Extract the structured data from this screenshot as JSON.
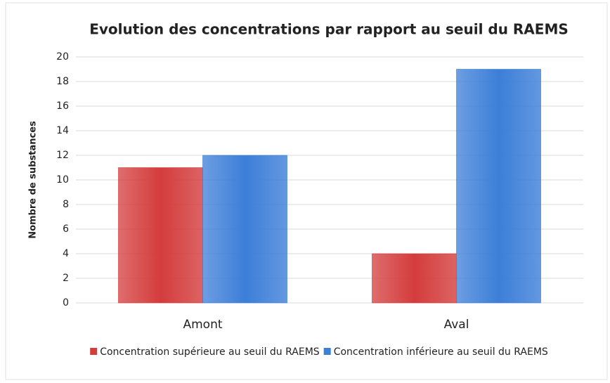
{
  "chart_data": {
    "type": "bar",
    "title": "Evolution des concentrations par rapport au seuil du RAEMS",
    "y_label": "Nombre de substances",
    "categories": [
      "Amont",
      "Aval"
    ],
    "series": [
      {
        "name": "Concentration supérieure au seuil du RAEMS",
        "color": "#d43c3c",
        "values": [
          11,
          4
        ]
      },
      {
        "name": "Concentration inférieure au seuil du RAEMS",
        "color": "#3c7ed8",
        "values": [
          12,
          19
        ]
      }
    ],
    "ylim": [
      0,
      20
    ],
    "yticks": [
      0,
      2,
      4,
      6,
      8,
      10,
      12,
      14,
      16,
      18,
      20
    ],
    "grid": true,
    "legend": "bottom"
  }
}
